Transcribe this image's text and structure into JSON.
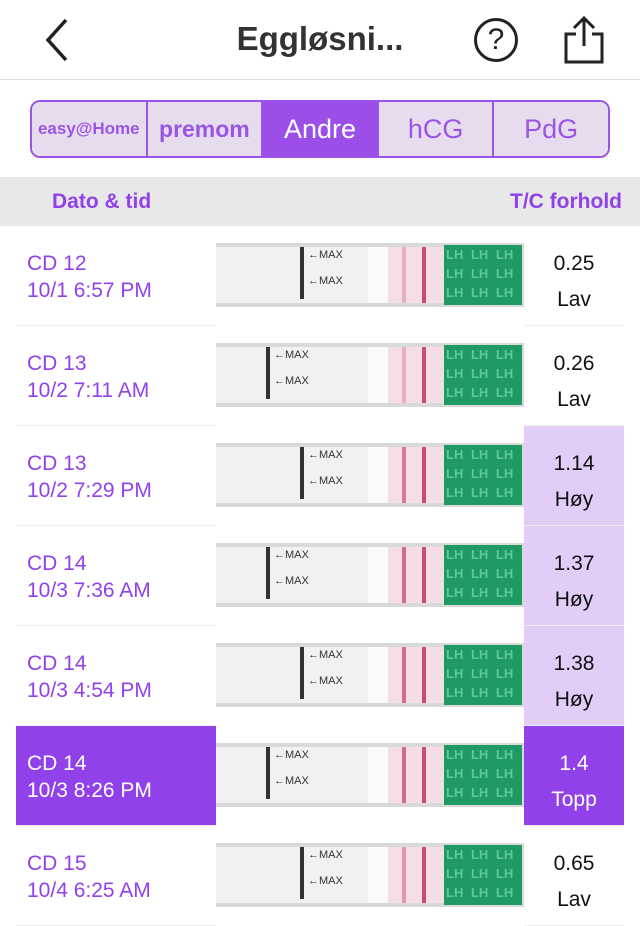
{
  "nav": {
    "title": "Eggløsni...",
    "back_icon": "chevron-left-icon",
    "help_icon": "question-circle-icon",
    "share_icon": "share-icon"
  },
  "tabs": [
    {
      "label": "easy@Home",
      "type": "logo"
    },
    {
      "label": "premom",
      "type": "logo"
    },
    {
      "label": "Andre",
      "active": true
    },
    {
      "label": "hCG"
    },
    {
      "label": "PdG"
    }
  ],
  "header": {
    "date_label": "Dato & tid",
    "ratio_label": "T/C forhold"
  },
  "strip": {
    "max_label": "←MAX",
    "lh_label": "LH"
  },
  "colors": {
    "accent": "#9141ea",
    "high_bg": "#e2cdf9",
    "tab_bg": "#e7dbee"
  },
  "rows": [
    {
      "cd": "CD 12",
      "time": "10/1 6:57 PM",
      "ratio": "0.25",
      "level": "Lav"
    },
    {
      "cd": "CD 13",
      "time": "10/2 7:11 AM",
      "ratio": "0.26",
      "level": "Lav"
    },
    {
      "cd": "CD 13",
      "time": "10/2 7:29 PM",
      "ratio": "1.14",
      "level": "Høy"
    },
    {
      "cd": "CD 14",
      "time": "10/3 7:36 AM",
      "ratio": "1.37",
      "level": "Høy"
    },
    {
      "cd": "CD 14",
      "time": "10/3 4:54 PM",
      "ratio": "1.38",
      "level": "Høy"
    },
    {
      "cd": "CD 14",
      "time": "10/3 8:26 PM",
      "ratio": "1.4",
      "level": "Topp",
      "selected": true
    },
    {
      "cd": "CD 15",
      "time": "10/4 6:25 AM",
      "ratio": "0.65",
      "level": "Lav"
    }
  ]
}
